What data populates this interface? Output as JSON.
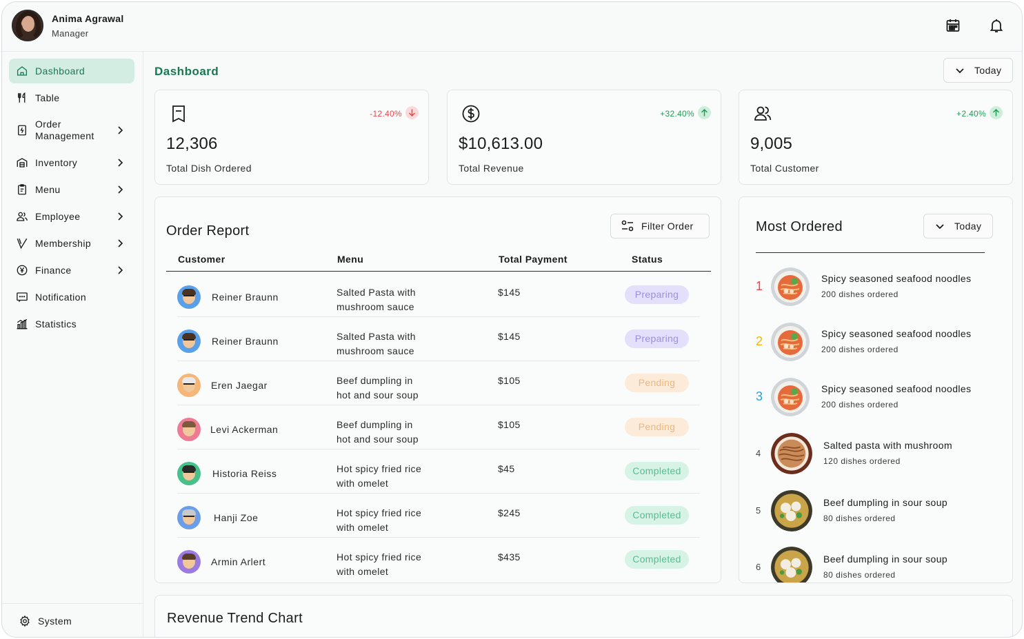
{
  "user": {
    "name": "Anima Agrawal",
    "role": "Manager"
  },
  "sidebar": {
    "items": [
      {
        "label": "Dashboard",
        "icon": "home-icon",
        "active": true
      },
      {
        "label": "Table",
        "icon": "utensils-icon"
      },
      {
        "label": "Order\nManagement",
        "label_line1": "Order",
        "label_line2": "Management",
        "icon": "receipt-icon"
      },
      {
        "label": "Inventory",
        "icon": "warehouse-icon"
      },
      {
        "label": "Menu",
        "icon": "clipboard-icon"
      },
      {
        "label": "Employee",
        "icon": "users-icon"
      },
      {
        "label": "Membership",
        "icon": "membership-icon"
      },
      {
        "label": "Finance",
        "icon": "yen-coin-icon"
      },
      {
        "label": "Notification",
        "icon": "message-icon"
      },
      {
        "label": "Statistics",
        "icon": "bar-chart-icon"
      }
    ],
    "system_label": "System"
  },
  "page_title": "Dashboard",
  "date_filter": "Today",
  "stats": [
    {
      "value": "12,306",
      "label": "Total Dish Ordered",
      "change": "-12.40%",
      "trend": "down",
      "icon": "receipt-icon"
    },
    {
      "value": "$10,613.00",
      "label": "Total Revenue",
      "change": "+32.40%",
      "trend": "up",
      "icon": "dollar-icon"
    },
    {
      "value": "9,005",
      "label": "Total Customer",
      "change": "+2.40%",
      "trend": "up",
      "icon": "users-icon"
    }
  ],
  "order_report": {
    "title": "Order Report",
    "filter_label": "Filter Order",
    "columns": [
      "Customer",
      "Menu",
      "Total Payment",
      "Status"
    ],
    "rows": [
      {
        "customer": "Reiner Braunn",
        "menu_line1": "Salted Pasta with",
        "menu_line2": "mushroom sauce",
        "payment": "$145",
        "status": "Preparing",
        "avatar_color": "#5aa0e8"
      },
      {
        "customer": "Reiner Braunn",
        "menu_line1": "Salted Pasta with",
        "menu_line2": "mushroom sauce",
        "payment": "$145",
        "status": "Preparing",
        "avatar_color": "#5aa0e8"
      },
      {
        "customer": "Eren Jaegar",
        "menu_line1": "Beef dumpling in",
        "menu_line2": "hot and sour soup",
        "payment": "$105",
        "status": "Pending",
        "avatar_color": "#f5b677"
      },
      {
        "customer": "Levi Ackerman",
        "menu_line1": "Beef dumpling in",
        "menu_line2": "hot and sour soup",
        "payment": "$105",
        "status": "Pending",
        "avatar_color": "#ee7b93"
      },
      {
        "customer": "Historia Reiss",
        "menu_line1": "Hot spicy fried rice",
        "menu_line2": "with omelet",
        "payment": "$45",
        "status": "Completed",
        "avatar_color": "#47c08c"
      },
      {
        "customer": "Hanji Zoe",
        "menu_line1": "Hot spicy fried rice",
        "menu_line2": "with omelet",
        "payment": "$245",
        "status": "Completed",
        "avatar_color": "#6b9de8"
      },
      {
        "customer": "Armin Arlert",
        "menu_line1": "Hot spicy fried rice",
        "menu_line2": "with omelet",
        "payment": "$435",
        "status": "Completed",
        "avatar_color": "#9b7be0"
      }
    ]
  },
  "most_ordered": {
    "title": "Most Ordered",
    "filter": "Today",
    "items": [
      {
        "rank": "1",
        "name": "Spicy seasoned seafood noodles",
        "sub": "200 dishes ordered",
        "rank_color": "#e5484d",
        "dish": "noodles"
      },
      {
        "rank": "2",
        "name": "Spicy seasoned seafood noodles",
        "sub": "200 dishes ordered",
        "rank_color": "#f2b705",
        "dish": "noodles"
      },
      {
        "rank": "3",
        "name": "Spicy seasoned seafood noodles",
        "sub": "200 dishes ordered",
        "rank_color": "#2aa3d8",
        "dish": "noodles"
      },
      {
        "rank": "4",
        "name": "Salted pasta with mushroom",
        "sub": "120 dishes ordered",
        "rank_color": "#444444",
        "dish": "pasta"
      },
      {
        "rank": "5",
        "name": "Beef dumpling in sour soup",
        "sub": "80 dishes ordered",
        "rank_color": "#444444",
        "dish": "dumpling"
      },
      {
        "rank": "6",
        "name": "Beef dumpling in sour soup",
        "sub": "80 dishes ordered",
        "rank_color": "#444444",
        "dish": "dumpling"
      }
    ]
  },
  "revenue_chart": {
    "title": "Revenue Trend Chart"
  },
  "colors": {
    "accent": "#157a52",
    "active_bg": "#d3ede3",
    "down": "#e5484d",
    "up": "#1f9d55",
    "preparing_bg": "#e4e0fb",
    "preparing_fg": "#9a8fe3",
    "pending_bg": "#fcebd9",
    "pending_fg": "#f2b57a",
    "completed_bg": "#d6f3e6",
    "completed_fg": "#4cc38f"
  }
}
